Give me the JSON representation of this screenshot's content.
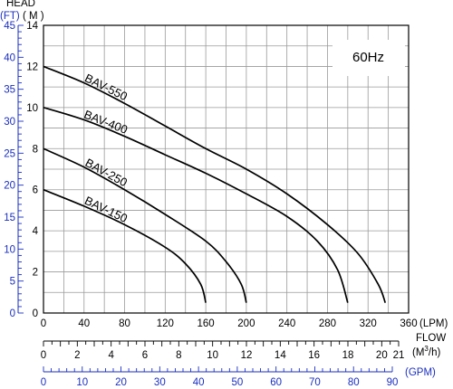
{
  "chart_data": {
    "type": "line",
    "annotation": "60Hz",
    "colors": {
      "primary_axis": "#000000",
      "secondary_axis": "#1a2fbf",
      "grid": "#9a9a9a"
    },
    "grid": true,
    "y_axis_left": {
      "title": "HEAD",
      "unit": "( M )",
      "ylim": [
        0,
        14
      ],
      "ticks": [
        0,
        2,
        4,
        6,
        8,
        10,
        12,
        14
      ]
    },
    "y_axis_feet": {
      "unit": "(FT)",
      "ylim": [
        0,
        45
      ],
      "ticks": [
        0,
        5,
        10,
        15,
        20,
        25,
        30,
        35,
        40,
        45
      ]
    },
    "x_axis_lpm": {
      "unit": "(LPM)",
      "title": "FLOW",
      "xlim": [
        0,
        360
      ],
      "ticks": [
        0,
        40,
        80,
        120,
        160,
        200,
        240,
        280,
        320,
        360
      ]
    },
    "x_axis_m3h": {
      "unit_prefix": "(M",
      "unit_sup": "3",
      "unit_suffix": "/h)",
      "xlim": [
        0,
        21
      ],
      "ticks": [
        0,
        2,
        4,
        6,
        8,
        10,
        12,
        14,
        16,
        18,
        20,
        21
      ]
    },
    "x_axis_gpm": {
      "unit": "(GPM)",
      "xlim": [
        0,
        90
      ],
      "ticks": [
        0,
        10,
        20,
        30,
        40,
        50,
        60,
        70,
        80,
        90
      ]
    },
    "series": [
      {
        "name": "BAV-550",
        "points": [
          [
            0,
            12.0
          ],
          [
            40,
            11.2
          ],
          [
            80,
            10.2
          ],
          [
            120,
            9.1
          ],
          [
            160,
            8.0
          ],
          [
            200,
            7.0
          ],
          [
            240,
            5.8
          ],
          [
            280,
            4.3
          ],
          [
            310,
            2.9
          ],
          [
            330,
            1.4
          ],
          [
            337,
            0.5
          ]
        ]
      },
      {
        "name": "BAV-400",
        "points": [
          [
            0,
            10.0
          ],
          [
            40,
            9.4
          ],
          [
            80,
            8.6
          ],
          [
            120,
            7.7
          ],
          [
            160,
            6.8
          ],
          [
            200,
            5.8
          ],
          [
            240,
            4.7
          ],
          [
            270,
            3.5
          ],
          [
            290,
            2.1
          ],
          [
            300,
            0.5
          ]
        ]
      },
      {
        "name": "BAV-250",
        "points": [
          [
            0,
            8.0
          ],
          [
            40,
            7.1
          ],
          [
            80,
            6.0
          ],
          [
            120,
            4.8
          ],
          [
            160,
            3.5
          ],
          [
            180,
            2.5
          ],
          [
            195,
            1.4
          ],
          [
            200,
            0.5
          ]
        ]
      },
      {
        "name": "BAV-150",
        "points": [
          [
            0,
            6.0
          ],
          [
            40,
            5.2
          ],
          [
            80,
            4.3
          ],
          [
            120,
            3.2
          ],
          [
            140,
            2.4
          ],
          [
            155,
            1.4
          ],
          [
            160,
            0.5
          ]
        ]
      }
    ]
  }
}
